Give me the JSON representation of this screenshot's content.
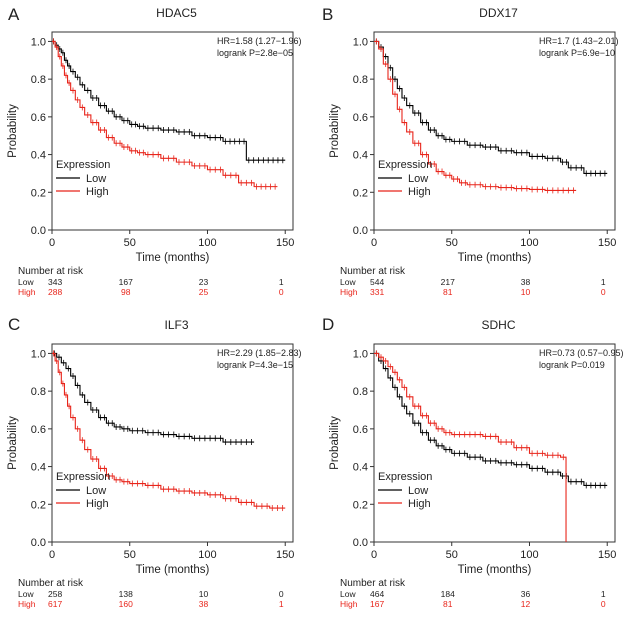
{
  "colors": {
    "low": "#000000",
    "high": "#e8251b",
    "text": "#222222",
    "high_text": "#e8251b"
  },
  "chart_data": [
    {
      "panel": "A",
      "type": "line",
      "title": "HDAC5",
      "xlabel": "Time (months)",
      "ylabel": "Probability",
      "xlim": [
        0,
        155
      ],
      "ylim": [
        0,
        1.05
      ],
      "xticks": [
        0,
        50,
        100,
        150
      ],
      "yticks": [
        0,
        0.2,
        0.4,
        0.6,
        0.8,
        1.0
      ],
      "hr_text": "HR=1.58 (1.27−1.96)",
      "logrank_text": "logrank P=2.8e−05",
      "legend_title": "Expression",
      "legend_position": "bottom-left",
      "series": [
        {
          "name": "Low",
          "color_key": "low",
          "x": [
            0,
            2,
            4,
            6,
            8,
            10,
            12,
            15,
            18,
            21,
            25,
            30,
            35,
            40,
            45,
            50,
            55,
            60,
            70,
            80,
            90,
            100,
            110,
            125,
            150
          ],
          "y": [
            1.0,
            0.98,
            0.96,
            0.94,
            0.9,
            0.87,
            0.84,
            0.81,
            0.77,
            0.74,
            0.7,
            0.66,
            0.63,
            0.6,
            0.58,
            0.56,
            0.55,
            0.54,
            0.53,
            0.52,
            0.5,
            0.49,
            0.47,
            0.37,
            0.37
          ]
        },
        {
          "name": "High",
          "color_key": "high",
          "x": [
            0,
            2,
            4,
            6,
            8,
            10,
            12,
            15,
            18,
            21,
            25,
            30,
            35,
            40,
            45,
            50,
            55,
            60,
            70,
            80,
            90,
            100,
            110,
            120,
            130,
            145
          ],
          "y": [
            1.0,
            0.97,
            0.92,
            0.87,
            0.82,
            0.78,
            0.74,
            0.69,
            0.65,
            0.61,
            0.57,
            0.53,
            0.49,
            0.46,
            0.44,
            0.42,
            0.41,
            0.4,
            0.38,
            0.36,
            0.34,
            0.32,
            0.29,
            0.25,
            0.23,
            0.23
          ]
        }
      ],
      "risk_title": "Number at risk",
      "risk_x": [
        0,
        50,
        100,
        150
      ],
      "risk_rows": [
        {
          "label": "Low",
          "values": [
            "343",
            "167",
            "23",
            "1"
          ]
        },
        {
          "label": "High",
          "values": [
            "288",
            "98",
            "25",
            "0"
          ]
        }
      ]
    },
    {
      "panel": "B",
      "type": "line",
      "title": "DDX17",
      "xlabel": "Time (months)",
      "ylabel": "Probability",
      "xlim": [
        0,
        155
      ],
      "ylim": [
        0,
        1.05
      ],
      "xticks": [
        0,
        50,
        100,
        150
      ],
      "yticks": [
        0,
        0.2,
        0.4,
        0.6,
        0.8,
        1.0
      ],
      "hr_text": "HR=1.7 (1.43−2.01)",
      "logrank_text": "logrank P=6.9e−10",
      "legend_title": "Expression",
      "legend_position": "bottom-left",
      "series": [
        {
          "name": "Low",
          "color_key": "low",
          "x": [
            0,
            3,
            6,
            9,
            12,
            15,
            18,
            21,
            25,
            30,
            35,
            40,
            45,
            50,
            60,
            70,
            80,
            90,
            100,
            110,
            120,
            125,
            135,
            150
          ],
          "y": [
            1.0,
            0.97,
            0.92,
            0.86,
            0.8,
            0.75,
            0.7,
            0.66,
            0.62,
            0.57,
            0.53,
            0.5,
            0.48,
            0.47,
            0.45,
            0.44,
            0.42,
            0.41,
            0.39,
            0.38,
            0.36,
            0.33,
            0.3,
            0.3
          ]
        },
        {
          "name": "High",
          "color_key": "high",
          "x": [
            0,
            3,
            6,
            9,
            12,
            15,
            18,
            21,
            25,
            30,
            35,
            40,
            45,
            50,
            55,
            60,
            70,
            80,
            90,
            100,
            110,
            120,
            130
          ],
          "y": [
            1.0,
            0.96,
            0.88,
            0.8,
            0.72,
            0.64,
            0.57,
            0.52,
            0.46,
            0.4,
            0.35,
            0.31,
            0.29,
            0.27,
            0.25,
            0.24,
            0.23,
            0.225,
            0.22,
            0.215,
            0.21,
            0.21,
            0.21
          ]
        }
      ],
      "risk_title": "Number at risk",
      "risk_x": [
        0,
        50,
        100,
        150
      ],
      "risk_rows": [
        {
          "label": "Low",
          "values": [
            "544",
            "217",
            "38",
            "1"
          ]
        },
        {
          "label": "High",
          "values": [
            "331",
            "81",
            "10",
            "0"
          ]
        }
      ]
    },
    {
      "panel": "C",
      "type": "line",
      "title": "ILF3",
      "xlabel": "Time (months)",
      "ylabel": "Probability",
      "xlim": [
        0,
        155
      ],
      "ylim": [
        0,
        1.05
      ],
      "xticks": [
        0,
        50,
        100,
        150
      ],
      "yticks": [
        0,
        0.2,
        0.4,
        0.6,
        0.8,
        1.0
      ],
      "hr_text": "HR=2.29 (1.85−2.83)",
      "logrank_text": "logrank P=4.3e−15",
      "legend_title": "Expression",
      "legend_position": "bottom-left",
      "series": [
        {
          "name": "Low",
          "color_key": "low",
          "x": [
            0,
            3,
            6,
            9,
            12,
            15,
            18,
            21,
            25,
            30,
            35,
            40,
            45,
            50,
            60,
            70,
            80,
            90,
            100,
            110,
            120,
            130
          ],
          "y": [
            1.0,
            0.98,
            0.95,
            0.92,
            0.88,
            0.83,
            0.78,
            0.74,
            0.7,
            0.66,
            0.63,
            0.61,
            0.6,
            0.59,
            0.58,
            0.57,
            0.56,
            0.55,
            0.55,
            0.53,
            0.53,
            0.53
          ]
        },
        {
          "name": "High",
          "color_key": "high",
          "x": [
            0,
            2,
            4,
            6,
            8,
            10,
            12,
            15,
            18,
            21,
            25,
            30,
            35,
            40,
            45,
            50,
            60,
            70,
            80,
            90,
            100,
            110,
            120,
            130,
            140,
            150
          ],
          "y": [
            1.0,
            0.96,
            0.9,
            0.84,
            0.78,
            0.72,
            0.66,
            0.6,
            0.54,
            0.49,
            0.44,
            0.39,
            0.35,
            0.33,
            0.32,
            0.31,
            0.3,
            0.28,
            0.27,
            0.26,
            0.25,
            0.23,
            0.21,
            0.19,
            0.18,
            0.18
          ]
        }
      ],
      "risk_title": "Number at risk",
      "risk_x": [
        0,
        50,
        100,
        150
      ],
      "risk_rows": [
        {
          "label": "Low",
          "values": [
            "258",
            "138",
            "10",
            "0"
          ]
        },
        {
          "label": "High",
          "values": [
            "617",
            "160",
            "38",
            "1"
          ]
        }
      ]
    },
    {
      "panel": "D",
      "type": "line",
      "title": "SDHC",
      "xlabel": "Time (months)",
      "ylabel": "Probability",
      "xlim": [
        0,
        155
      ],
      "ylim": [
        0,
        1.05
      ],
      "xticks": [
        0,
        50,
        100,
        150
      ],
      "yticks": [
        0,
        0.2,
        0.4,
        0.6,
        0.8,
        1.0
      ],
      "hr_text": "HR=0.73 (0.57−0.95)",
      "logrank_text": "logrank P=0.019",
      "legend_title": "Expression",
      "legend_position": "bottom-left",
      "series": [
        {
          "name": "Low",
          "color_key": "low",
          "x": [
            0,
            3,
            6,
            9,
            12,
            15,
            18,
            21,
            25,
            30,
            35,
            40,
            45,
            50,
            60,
            70,
            80,
            90,
            100,
            110,
            120,
            125,
            135,
            150
          ],
          "y": [
            1.0,
            0.96,
            0.92,
            0.87,
            0.82,
            0.77,
            0.72,
            0.68,
            0.63,
            0.58,
            0.54,
            0.51,
            0.49,
            0.47,
            0.45,
            0.43,
            0.42,
            0.41,
            0.39,
            0.37,
            0.35,
            0.32,
            0.3,
            0.3
          ]
        },
        {
          "name": "High",
          "color_key": "high",
          "x": [
            0,
            3,
            6,
            9,
            12,
            15,
            18,
            21,
            25,
            30,
            35,
            40,
            45,
            50,
            60,
            70,
            80,
            90,
            100,
            110,
            120,
            123.5
          ],
          "y": [
            1.0,
            0.98,
            0.96,
            0.93,
            0.9,
            0.86,
            0.82,
            0.77,
            0.72,
            0.67,
            0.63,
            0.6,
            0.58,
            0.57,
            0.57,
            0.56,
            0.53,
            0.5,
            0.47,
            0.46,
            0.45,
            0.0
          ]
        }
      ],
      "risk_title": "Number at risk",
      "risk_x": [
        0,
        50,
        100,
        150
      ],
      "risk_rows": [
        {
          "label": "Low",
          "values": [
            "464",
            "184",
            "36",
            "1"
          ]
        },
        {
          "label": "High",
          "values": [
            "167",
            "81",
            "12",
            "0"
          ]
        }
      ]
    }
  ]
}
